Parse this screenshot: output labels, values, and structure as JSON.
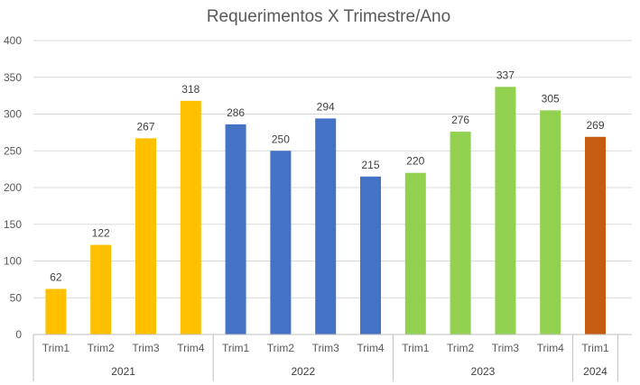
{
  "chart_data": {
    "type": "bar",
    "title": "Requerimentos X Trimestre/Ano",
    "xlabel": "",
    "ylabel": "",
    "ylim": [
      0,
      400
    ],
    "yticks": [
      0,
      50,
      100,
      150,
      200,
      250,
      300,
      350,
      400
    ],
    "grid": true,
    "legend": "none",
    "groups": [
      {
        "label": "2021",
        "color": "#FFC000",
        "categories": [
          "Trim1",
          "Trim2",
          "Trim3",
          "Trim4"
        ],
        "values": [
          62,
          122,
          267,
          318
        ]
      },
      {
        "label": "2022",
        "color": "#4472C4",
        "categories": [
          "Trim1",
          "Trim2",
          "Trim3",
          "Trim4"
        ],
        "values": [
          286,
          250,
          294,
          215
        ]
      },
      {
        "label": "2023",
        "color": "#92D050",
        "categories": [
          "Trim1",
          "Trim2",
          "Trim3",
          "Trim4"
        ],
        "values": [
          220,
          276,
          337,
          305
        ]
      },
      {
        "label": "2024",
        "color": "#C55A11",
        "categories": [
          "Trim1"
        ],
        "values": [
          269
        ]
      }
    ]
  }
}
